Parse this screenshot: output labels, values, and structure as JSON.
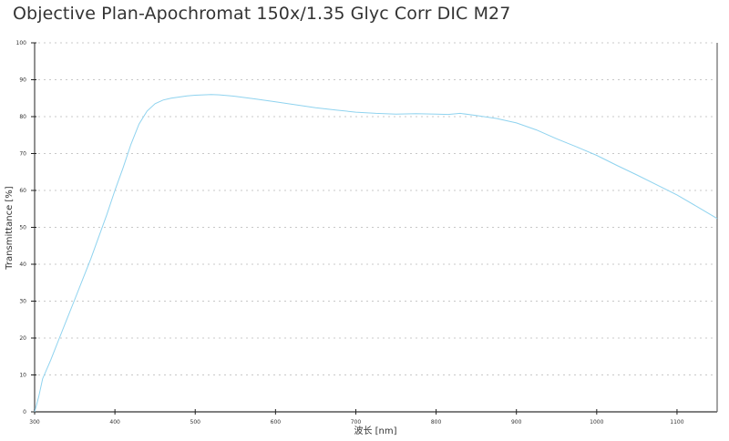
{
  "title": "Objective Plan-Apochromat 150x/1.35 Glyc Corr DIC M27",
  "chart_data": {
    "type": "line",
    "title": "Objective Plan-Apochromat 150x/1.35 Glyc Corr DIC M27",
    "xlabel": "波长 [nm]",
    "ylabel": "Transmittance [%]",
    "xlim": [
      300,
      1150
    ],
    "ylim": [
      0,
      100
    ],
    "x_ticks": [
      300,
      400,
      500,
      600,
      700,
      800,
      900,
      1000,
      1100
    ],
    "y_ticks": [
      0,
      10,
      20,
      30,
      40,
      50,
      60,
      70,
      80,
      90,
      100
    ],
    "grid": {
      "horizontal": true,
      "vertical": false,
      "style": "dotted"
    },
    "legend": "none",
    "line_color": "#8fd3ef",
    "series": [
      {
        "name": "Transmittance",
        "x": [
          300,
          305,
          310,
          320,
          330,
          340,
          350,
          360,
          370,
          380,
          390,
          400,
          410,
          420,
          430,
          440,
          450,
          460,
          470,
          480,
          490,
          500,
          510,
          520,
          530,
          550,
          575,
          600,
          625,
          650,
          675,
          700,
          725,
          750,
          775,
          800,
          815,
          830,
          850,
          875,
          900,
          925,
          950,
          975,
          1000,
          1025,
          1050,
          1075,
          1100,
          1125,
          1150
        ],
        "y": [
          0,
          4,
          9,
          14,
          19.5,
          25,
          30.5,
          36,
          41.5,
          47.5,
          53.5,
          60,
          66,
          72.5,
          78,
          81.5,
          83.5,
          84.5,
          85,
          85.3,
          85.6,
          85.8,
          85.9,
          86,
          85.9,
          85.5,
          84.8,
          84,
          83.2,
          82.4,
          81.8,
          81.2,
          80.9,
          80.7,
          80.8,
          80.7,
          80.6,
          80.9,
          80.3,
          79.5,
          78.3,
          76.4,
          74,
          71.8,
          69.5,
          66.8,
          64.2,
          61.5,
          58.8,
          55.6,
          52.4
        ]
      }
    ]
  }
}
